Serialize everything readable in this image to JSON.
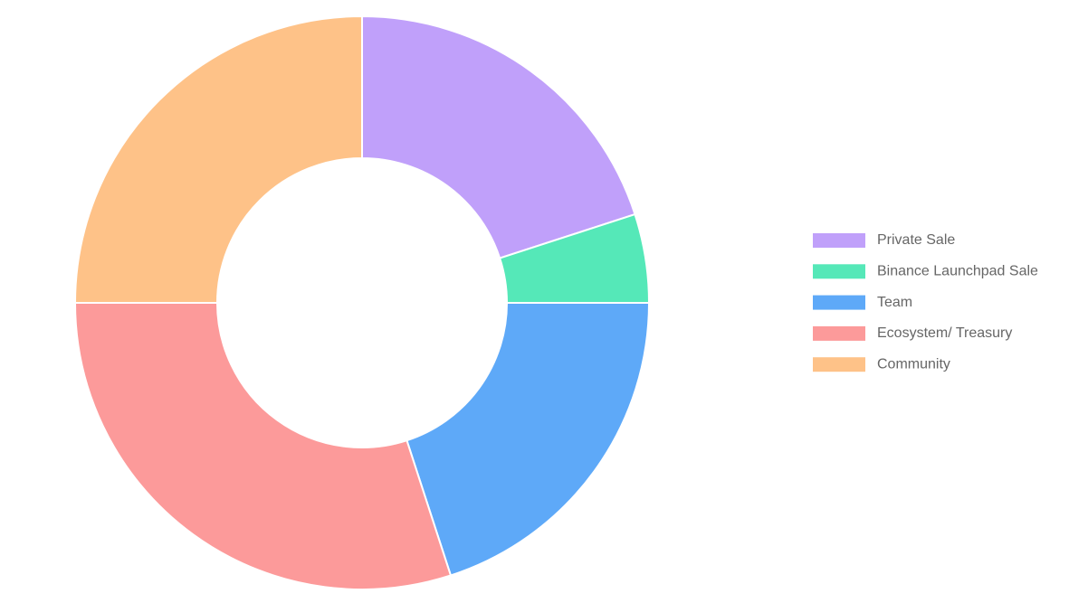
{
  "chart_data": {
    "type": "doughnut",
    "categories": [
      "Private Sale",
      "Binance Launchpad Sale",
      "Team",
      "Ecosystem/ Treasury",
      "Community"
    ],
    "values": [
      20,
      5,
      20,
      30,
      25
    ],
    "colors": [
      "#c0a0fa",
      "#55e8b8",
      "#5ea9f8",
      "#fc9a9a",
      "#fec288"
    ],
    "legend": "right"
  }
}
